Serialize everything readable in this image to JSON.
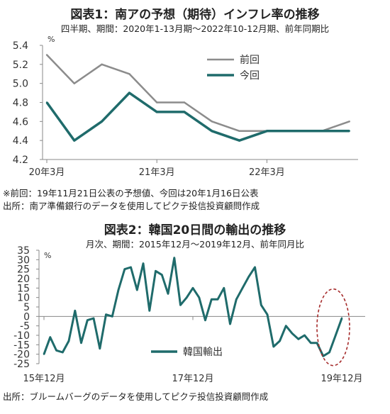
{
  "colors": {
    "prev": "#8c8c8c",
    "curr": "#1f6b6b",
    "axis": "#888888",
    "highlight": "#a52a2a"
  },
  "chart_data": [
    {
      "type": "line",
      "title": "図表1：南アの予想（期待）インフレ率の推移",
      "subtitle": "四半期、期間：2020年1-13月期～2022年10-12月期、前年同期比",
      "unit": "%",
      "ylim": [
        4.2,
        5.4
      ],
      "yticks": [
        "5.4",
        "5.2",
        "5.0",
        "4.8",
        "4.6",
        "4.4",
        "4.2"
      ],
      "ytick_values": [
        5.4,
        5.2,
        5.0,
        4.8,
        4.6,
        4.4,
        4.2
      ],
      "xtick_labels": [
        "20年3月",
        "21年3月",
        "22年3月"
      ],
      "xtick_index": [
        0,
        4,
        8
      ],
      "legend_position": "top-right",
      "series": [
        {
          "name": "前回",
          "values": [
            5.3,
            5.0,
            5.2,
            5.1,
            4.8,
            4.8,
            4.6,
            4.5,
            4.5,
            4.5,
            4.5,
            4.6
          ]
        },
        {
          "name": "今回",
          "values": [
            4.8,
            4.4,
            4.6,
            4.9,
            4.7,
            4.7,
            4.5,
            4.4,
            4.5,
            4.5,
            4.5,
            4.5
          ]
        }
      ],
      "notes": [
        "※前回：19年11月21日公表の予想値、今回は20年1月16日公表",
        "出所：南ア準備銀行のデータを使用してピクテ投信投資顧問作成"
      ]
    },
    {
      "type": "line",
      "title": "図表2：韓国20日間の輸出の推移",
      "subtitle": "月次、期間：2015年12月～2019年12月、前年同月比",
      "unit": "%",
      "ylim": [
        -25,
        35
      ],
      "yticks": [
        "35",
        "30",
        "25",
        "20",
        "15",
        "10",
        "5",
        "0",
        "-5",
        "-10",
        "-15",
        "-20",
        "-25"
      ],
      "ytick_values": [
        35,
        30,
        25,
        20,
        15,
        10,
        5,
        0,
        -5,
        -10,
        -15,
        -20,
        -25
      ],
      "xtick_labels": [
        "15年12月",
        "17年12月",
        "19年12月"
      ],
      "xtick_index": [
        0,
        24,
        48
      ],
      "legend_position": "bottom-center",
      "highlight": "last-point",
      "series": [
        {
          "name": "韓国輸出",
          "values": [
            -20,
            -11,
            -18,
            -19,
            -13,
            3,
            -14,
            -2,
            -1,
            -17,
            1,
            0,
            14,
            25,
            26,
            14,
            28,
            3,
            24,
            22,
            12,
            31,
            6,
            10,
            15,
            10,
            -2,
            9,
            9,
            15,
            -4,
            9,
            15,
            21,
            26,
            6,
            1,
            -16,
            -13,
            -5,
            -9,
            -12,
            -10,
            -14,
            -14,
            -21,
            -19,
            -10,
            -1
          ]
        }
      ],
      "notes": [
        "出所：ブルームバーグのデータを使用してピクテ投信投資顧問作成"
      ]
    }
  ]
}
